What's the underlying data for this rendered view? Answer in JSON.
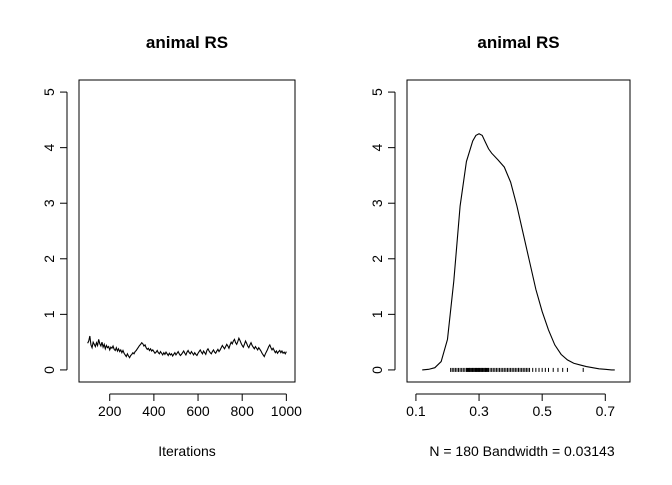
{
  "chart_data": [
    {
      "type": "line",
      "title": "animal RS",
      "xlabel": "Iterations",
      "ylabel": "",
      "xlim": [
        100,
        1000
      ],
      "ylim": [
        0,
        5
      ],
      "xticks": [
        200,
        400,
        600,
        800,
        1000
      ],
      "yticks": [
        0,
        1,
        2,
        3,
        4,
        5
      ],
      "grid": false,
      "series": [
        {
          "x": [
            100,
            105,
            110,
            115,
            120,
            125,
            130,
            135,
            140,
            145,
            150,
            155,
            160,
            165,
            170,
            175,
            180,
            185,
            190,
            195,
            200,
            205,
            210,
            215,
            220,
            225,
            230,
            235,
            240,
            245,
            250,
            255,
            260,
            265,
            270,
            275,
            280,
            285,
            290,
            295,
            300,
            305,
            310,
            315,
            320,
            325,
            330,
            335,
            340,
            345,
            350,
            355,
            360,
            365,
            370,
            375,
            380,
            385,
            390,
            395,
            400,
            405,
            410,
            415,
            420,
            425,
            430,
            435,
            440,
            445,
            450,
            455,
            460,
            465,
            470,
            475,
            480,
            485,
            490,
            495,
            500,
            505,
            510,
            515,
            520,
            525,
            530,
            535,
            540,
            545,
            550,
            555,
            560,
            565,
            570,
            575,
            580,
            585,
            590,
            595,
            600,
            605,
            610,
            615,
            620,
            625,
            630,
            635,
            640,
            645,
            650,
            655,
            660,
            665,
            670,
            675,
            680,
            685,
            690,
            695,
            700,
            705,
            710,
            715,
            720,
            725,
            730,
            735,
            740,
            745,
            750,
            755,
            760,
            765,
            770,
            775,
            780,
            785,
            790,
            795,
            800,
            805,
            810,
            815,
            820,
            825,
            830,
            835,
            840,
            845,
            850,
            855,
            860,
            865,
            870,
            875,
            880,
            885,
            890,
            895,
            900,
            905,
            910,
            915,
            920,
            925,
            930,
            935,
            940,
            945,
            950,
            955,
            960,
            965,
            970,
            975,
            980,
            985,
            990,
            995,
            1000
          ],
          "values": [
            0.48,
            0.52,
            0.61,
            0.45,
            0.4,
            0.5,
            0.46,
            0.42,
            0.49,
            0.44,
            0.55,
            0.47,
            0.43,
            0.5,
            0.41,
            0.46,
            0.38,
            0.44,
            0.4,
            0.42,
            0.36,
            0.41,
            0.39,
            0.43,
            0.37,
            0.35,
            0.4,
            0.34,
            0.38,
            0.33,
            0.36,
            0.31,
            0.35,
            0.3,
            0.27,
            0.24,
            0.29,
            0.25,
            0.22,
            0.26,
            0.28,
            0.31,
            0.29,
            0.33,
            0.35,
            0.38,
            0.41,
            0.44,
            0.46,
            0.49,
            0.47,
            0.43,
            0.45,
            0.4,
            0.37,
            0.39,
            0.35,
            0.38,
            0.34,
            0.36,
            0.33,
            0.3,
            0.32,
            0.35,
            0.31,
            0.29,
            0.33,
            0.3,
            0.27,
            0.31,
            0.28,
            0.32,
            0.29,
            0.26,
            0.3,
            0.27,
            0.29,
            0.25,
            0.28,
            0.31,
            0.27,
            0.3,
            0.33,
            0.29,
            0.26,
            0.28,
            0.31,
            0.34,
            0.3,
            0.27,
            0.32,
            0.35,
            0.31,
            0.29,
            0.33,
            0.3,
            0.27,
            0.31,
            0.28,
            0.26,
            0.3,
            0.33,
            0.36,
            0.32,
            0.29,
            0.34,
            0.31,
            0.28,
            0.35,
            0.38,
            0.34,
            0.31,
            0.29,
            0.33,
            0.36,
            0.32,
            0.3,
            0.34,
            0.37,
            0.33,
            0.36,
            0.4,
            0.44,
            0.41,
            0.38,
            0.42,
            0.46,
            0.43,
            0.39,
            0.45,
            0.5,
            0.47,
            0.52,
            0.55,
            0.49,
            0.46,
            0.51,
            0.57,
            0.53,
            0.48,
            0.44,
            0.41,
            0.46,
            0.52,
            0.48,
            0.43,
            0.4,
            0.45,
            0.49,
            0.44,
            0.41,
            0.38,
            0.42,
            0.39,
            0.36,
            0.4,
            0.37,
            0.34,
            0.3,
            0.27,
            0.24,
            0.29,
            0.33,
            0.37,
            0.42,
            0.45,
            0.4,
            0.36,
            0.39,
            0.35,
            0.31,
            0.34,
            0.3,
            0.33,
            0.35,
            0.31,
            0.34,
            0.3,
            0.32,
            0.29,
            0.33
          ]
        }
      ]
    },
    {
      "type": "line",
      "title": "animal RS",
      "xlabel": "N = 180   Bandwidth = 0.03143",
      "ylabel": "",
      "xlim": [
        0.1,
        0.75
      ],
      "ylim": [
        0,
        5
      ],
      "xticks": [
        0.1,
        0.3,
        0.5,
        0.7
      ],
      "xtick_labels": [
        "0.1",
        "0.3",
        "0.5",
        "0.7"
      ],
      "yticks": [
        0,
        1,
        2,
        3,
        4,
        5
      ],
      "grid": false,
      "series": [
        {
          "x": [
            0.12,
            0.14,
            0.16,
            0.18,
            0.2,
            0.22,
            0.24,
            0.26,
            0.28,
            0.29,
            0.3,
            0.31,
            0.32,
            0.33,
            0.34,
            0.36,
            0.38,
            0.4,
            0.42,
            0.44,
            0.46,
            0.48,
            0.5,
            0.52,
            0.54,
            0.56,
            0.58,
            0.6,
            0.62,
            0.64,
            0.66,
            0.68,
            0.7,
            0.72,
            0.73
          ],
          "values": [
            0.0,
            0.01,
            0.04,
            0.15,
            0.55,
            1.6,
            2.95,
            3.75,
            4.12,
            4.22,
            4.25,
            4.22,
            4.1,
            3.98,
            3.9,
            3.78,
            3.65,
            3.38,
            2.95,
            2.45,
            1.95,
            1.45,
            1.05,
            0.72,
            0.45,
            0.28,
            0.18,
            0.12,
            0.09,
            0.06,
            0.04,
            0.02,
            0.01,
            0.0,
            0.0
          ]
        }
      ],
      "rug": [
        0.21,
        0.215,
        0.22,
        0.225,
        0.23,
        0.235,
        0.24,
        0.245,
        0.25,
        0.255,
        0.26,
        0.262,
        0.265,
        0.268,
        0.27,
        0.272,
        0.275,
        0.278,
        0.28,
        0.282,
        0.285,
        0.288,
        0.29,
        0.292,
        0.295,
        0.298,
        0.3,
        0.302,
        0.305,
        0.308,
        0.31,
        0.312,
        0.315,
        0.318,
        0.32,
        0.322,
        0.325,
        0.328,
        0.33,
        0.335,
        0.34,
        0.345,
        0.35,
        0.355,
        0.36,
        0.365,
        0.37,
        0.375,
        0.38,
        0.385,
        0.39,
        0.395,
        0.4,
        0.405,
        0.41,
        0.415,
        0.42,
        0.425,
        0.43,
        0.435,
        0.44,
        0.445,
        0.45,
        0.455,
        0.46,
        0.47,
        0.48,
        0.49,
        0.5,
        0.51,
        0.52,
        0.535,
        0.55,
        0.565,
        0.58,
        0.63
      ]
    }
  ]
}
